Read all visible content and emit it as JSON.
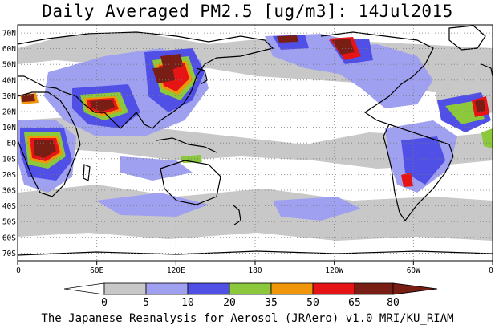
{
  "title": "Daily Averaged PM2.5 [ug/m3]: 14Jul2015",
  "credit": "The Japanese Reanalysis for Aerosol (JRAero) v1.0 MRI/KU_RIAM",
  "map": {
    "lon_range": [
      0,
      360
    ],
    "lat_range": [
      -75,
      75
    ],
    "lat_ticks": [
      {
        "value": 70,
        "label": "70N"
      },
      {
        "value": 60,
        "label": "60N"
      },
      {
        "value": 50,
        "label": "50N"
      },
      {
        "value": 40,
        "label": "40N"
      },
      {
        "value": 30,
        "label": "30N"
      },
      {
        "value": 20,
        "label": "20N"
      },
      {
        "value": 10,
        "label": "10N"
      },
      {
        "value": 0,
        "label": "EQ"
      },
      {
        "value": -10,
        "label": "10S"
      },
      {
        "value": -20,
        "label": "20S"
      },
      {
        "value": -30,
        "label": "30S"
      },
      {
        "value": -40,
        "label": "40S"
      },
      {
        "value": -50,
        "label": "50S"
      },
      {
        "value": -60,
        "label": "60S"
      },
      {
        "value": -70,
        "label": "70S"
      }
    ],
    "lon_ticks": [
      {
        "value": 0,
        "label": "0"
      },
      {
        "value": 60,
        "label": "60E"
      },
      {
        "value": 120,
        "label": "120E"
      },
      {
        "value": 180,
        "label": "180"
      },
      {
        "value": 240,
        "label": "120W"
      },
      {
        "value": 300,
        "label": "60W"
      },
      {
        "value": 360,
        "label": "0"
      }
    ],
    "gridlines": "dotted"
  },
  "colorbar": {
    "thresholds": [
      "0",
      "5",
      "10",
      "20",
      "35",
      "50",
      "65",
      "80"
    ],
    "colors": [
      "#ffffff",
      "#c8c8c8",
      "#a0a0f0",
      "#5050e6",
      "#8cc83c",
      "#f0960a",
      "#e61414",
      "#781e14"
    ]
  }
}
